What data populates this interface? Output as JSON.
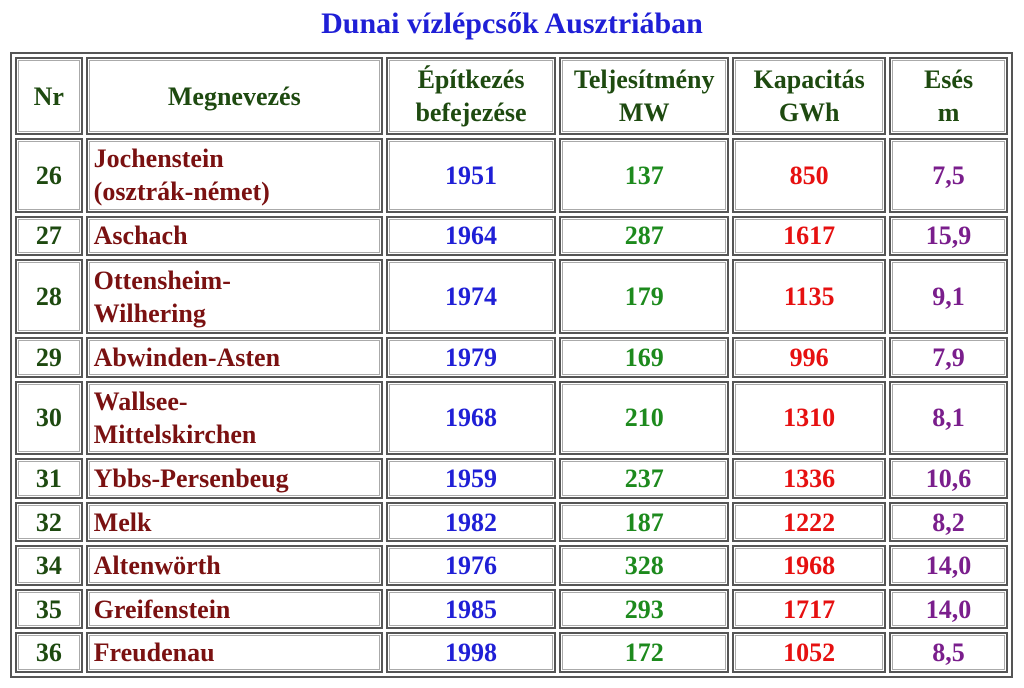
{
  "title": "Dunai vízlépcsők Ausztriában",
  "headers": {
    "nr": "Nr",
    "name": "Megnevezés",
    "built_1": "Építkezés",
    "built_2": "befejezése",
    "power_1": "Teljesítmény",
    "power_2": "MW",
    "capacity_1": "Kapacitás",
    "capacity_2": "GWh",
    "drop_1": "Esés",
    "drop_2": "m"
  },
  "rows": [
    {
      "nr": "26",
      "name_1": "Jochenstein",
      "name_2": "(osztrák-német)",
      "year": "1951",
      "mw": "137",
      "gwh": "850",
      "drop": "7,5"
    },
    {
      "nr": "27",
      "name_1": "Aschach",
      "name_2": "",
      "year": "1964",
      "mw": "287",
      "gwh": "1617",
      "drop": "15,9"
    },
    {
      "nr": "28",
      "name_1": "Ottensheim-",
      "name_2": "Wilhering",
      "year": "1974",
      "mw": "179",
      "gwh": "1135",
      "drop": "9,1"
    },
    {
      "nr": "29",
      "name_1": "Abwinden-Asten",
      "name_2": "",
      "year": "1979",
      "mw": "169",
      "gwh": "996",
      "drop": "7,9"
    },
    {
      "nr": "30",
      "name_1": "Wallsee-",
      "name_2": "Mittelskirchen",
      "year": "1968",
      "mw": "210",
      "gwh": "1310",
      "drop": "8,1"
    },
    {
      "nr": "31",
      "name_1": "Ybbs-Persenbeug",
      "name_2": "",
      "year": "1959",
      "mw": "237",
      "gwh": "1336",
      "drop": "10,6"
    },
    {
      "nr": "32",
      "name_1": "Melk",
      "name_2": "",
      "year": "1982",
      "mw": "187",
      "gwh": "1222",
      "drop": "8,2"
    },
    {
      "nr": "34",
      "name_1": "Altenwörth",
      "name_2": "",
      "year": "1976",
      "mw": "328",
      "gwh": "1968",
      "drop": "14,0"
    },
    {
      "nr": "35",
      "name_1": "Greifenstein",
      "name_2": "",
      "year": "1985",
      "mw": "293",
      "gwh": "1717",
      "drop": "14,0"
    },
    {
      "nr": "36",
      "name_1": "Freudenau",
      "name_2": "",
      "year": "1998",
      "mw": "172",
      "gwh": "1052",
      "drop": "8,5"
    }
  ]
}
